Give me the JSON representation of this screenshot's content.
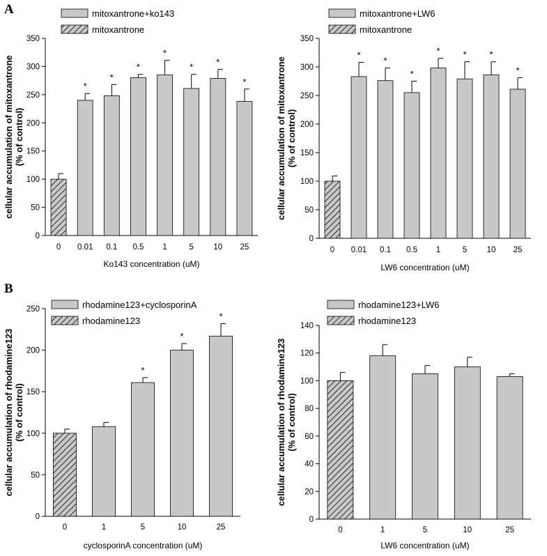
{
  "figure": {
    "panel_labels": [
      "A",
      "B"
    ],
    "colors": {
      "bar_fill": "#c8c8c8",
      "hatch_fill": "#c8c8c8",
      "stroke": "#000000"
    }
  },
  "chart_data": [
    {
      "type": "bar",
      "categories": [
        "0",
        "0.01",
        "0.1",
        "0.5",
        "1",
        "5",
        "10",
        "25"
      ],
      "values": [
        100,
        240,
        248,
        280,
        285,
        261,
        279,
        238
      ],
      "errors": [
        10,
        12,
        20,
        6,
        26,
        25,
        16,
        22
      ],
      "significance": [
        "",
        "*",
        "*",
        "*",
        "*",
        "*",
        "*",
        "*"
      ],
      "hatched_index": 0,
      "legend": [
        "mitoxantrone+ko143",
        "mitoxantrone"
      ],
      "xlabel": "Ko143 concentration (uM)",
      "ylabel": [
        "cellular accumulation of mitoxantrone",
        "(% of control)"
      ],
      "ylim": [
        0,
        350
      ],
      "yticks": [
        0,
        50,
        100,
        150,
        200,
        250,
        300,
        350
      ]
    },
    {
      "type": "bar",
      "categories": [
        "0",
        "0.01",
        "0.1",
        "0.5",
        "1",
        "5",
        "10",
        "25"
      ],
      "values": [
        100,
        283,
        276,
        255,
        298,
        279,
        286,
        261
      ],
      "errors": [
        9,
        25,
        22,
        20,
        17,
        30,
        23,
        20
      ],
      "significance": [
        "",
        "*",
        "*",
        "*",
        "*",
        "*",
        "*",
        "*"
      ],
      "hatched_index": 0,
      "legend": [
        "mitoxantrone+LW6",
        "mitoxantrone"
      ],
      "xlabel": "LW6 concentration (uM)",
      "ylabel": [
        "cellular accumulation of mitoxantrone",
        "(% of control)"
      ],
      "ylim": [
        0,
        350
      ],
      "yticks": [
        0,
        50,
        100,
        150,
        200,
        250,
        300,
        350
      ]
    },
    {
      "type": "bar",
      "categories": [
        "0",
        "1",
        "5",
        "10",
        "25"
      ],
      "values": [
        100,
        108,
        161,
        200,
        217
      ],
      "errors": [
        5,
        5,
        6,
        8,
        15
      ],
      "significance": [
        "",
        "",
        "*",
        "*",
        "*"
      ],
      "hatched_index": 0,
      "legend": [
        "rhodamine123+cyclosporinA",
        "rhodamine123"
      ],
      "xlabel": "cyclosporinA concentration (uM)",
      "ylabel": [
        "cellular accumulation of rhodamine123",
        "(% of control)"
      ],
      "ylim": [
        0,
        250
      ],
      "yticks": [
        0,
        50,
        100,
        150,
        200,
        250
      ]
    },
    {
      "type": "bar",
      "categories": [
        "0",
        "1",
        "5",
        "10",
        "25"
      ],
      "values": [
        100,
        118,
        105,
        110,
        103
      ],
      "errors": [
        6,
        8,
        6,
        7,
        2
      ],
      "significance": [
        "",
        "",
        "",
        "",
        ""
      ],
      "hatched_index": 0,
      "legend": [
        "rhodamine123+LW6",
        "rhodamine123"
      ],
      "xlabel": "LW6 concentration (uM)",
      "ylabel": [
        "cellular accumulation of rhodamine123",
        "(% of control)"
      ],
      "ylim": [
        0,
        140
      ],
      "yticks": [
        0,
        20,
        40,
        60,
        80,
        100,
        120,
        140
      ]
    }
  ]
}
